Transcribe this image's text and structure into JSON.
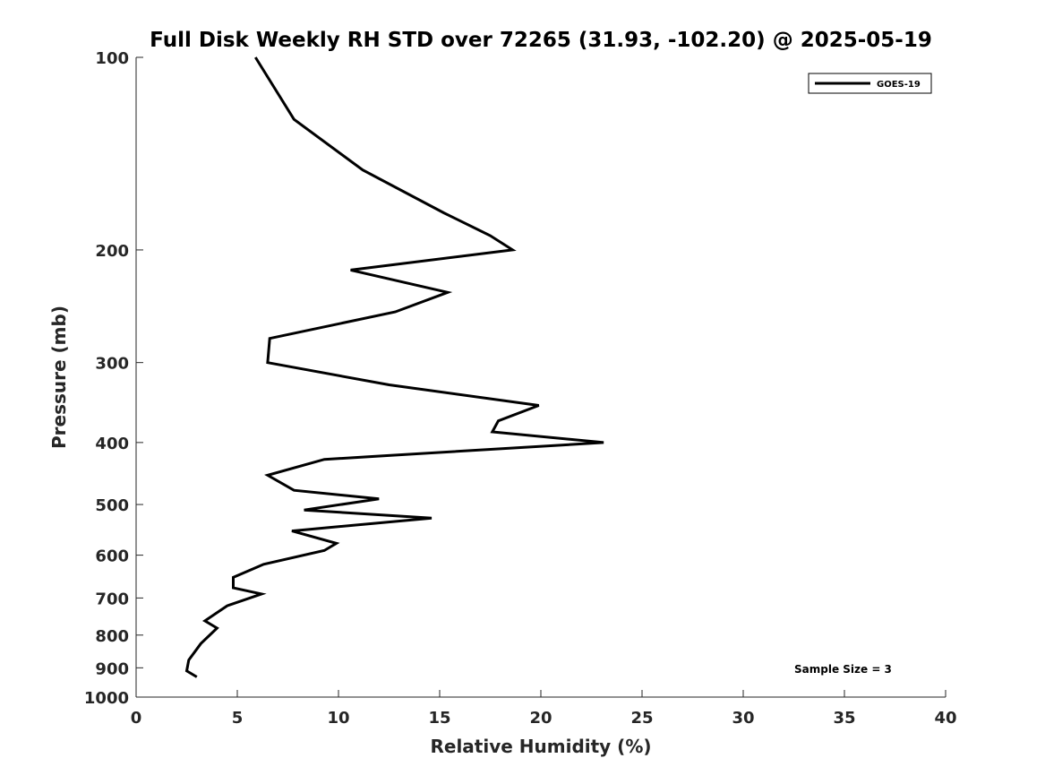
{
  "chart_data": {
    "type": "line",
    "title": "Full Disk Weekly RH STD over 72265 (31.93, -102.20) @ 2025-05-19",
    "xlabel": "Relative Humidity (%)",
    "ylabel": "Pressure (mb)",
    "xlim": [
      0,
      40
    ],
    "ylim": [
      100,
      1000
    ],
    "y_scale": "log",
    "y_reversed": true,
    "x_ticks": [
      "0",
      "5",
      "10",
      "15",
      "20",
      "25",
      "30",
      "35",
      "40"
    ],
    "y_ticks": [
      "100",
      "200",
      "300",
      "400",
      "500",
      "600",
      "700",
      "800",
      "900",
      "1000"
    ],
    "grid": false,
    "legend_position": "top-right",
    "annotation": "Sample Size = 3",
    "series": [
      {
        "name": "GOES-19",
        "color": "#000000",
        "points": [
          [
            5.9,
            100
          ],
          [
            7.8,
            125
          ],
          [
            11.2,
            150
          ],
          [
            15.2,
            175
          ],
          [
            17.5,
            190
          ],
          [
            18.6,
            200
          ],
          [
            10.6,
            215
          ],
          [
            15.4,
            233
          ],
          [
            12.8,
            250
          ],
          [
            6.6,
            275
          ],
          [
            6.5,
            300
          ],
          [
            12.5,
            325
          ],
          [
            19.9,
            350
          ],
          [
            17.9,
            370
          ],
          [
            17.6,
            385
          ],
          [
            23.1,
            400
          ],
          [
            9.3,
            425
          ],
          [
            6.5,
            450
          ],
          [
            7.8,
            475
          ],
          [
            12.0,
            490
          ],
          [
            8.3,
            510
          ],
          [
            14.6,
            525
          ],
          [
            7.7,
            550
          ],
          [
            9.9,
            575
          ],
          [
            9.3,
            590
          ],
          [
            6.3,
            620
          ],
          [
            4.8,
            650
          ],
          [
            4.8,
            675
          ],
          [
            6.2,
            690
          ],
          [
            4.5,
            720
          ],
          [
            3.4,
            760
          ],
          [
            4.0,
            780
          ],
          [
            3.2,
            825
          ],
          [
            2.6,
            875
          ],
          [
            2.5,
            910
          ],
          [
            3.0,
            930
          ]
        ]
      }
    ]
  }
}
